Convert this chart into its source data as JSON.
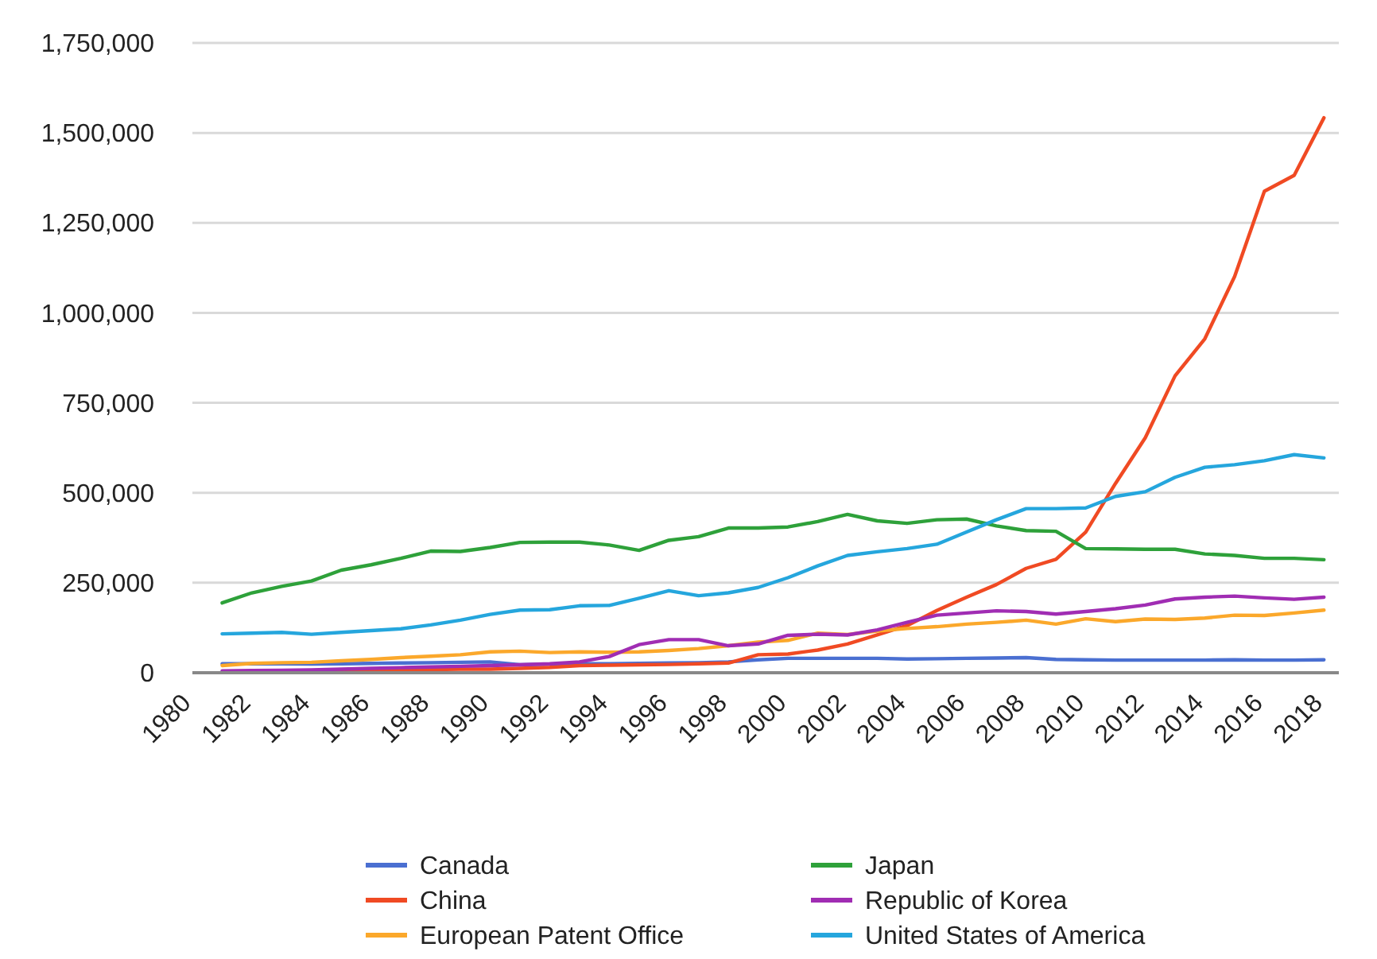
{
  "chart_data": {
    "type": "line",
    "x": [
      1981,
      1982,
      1983,
      1984,
      1985,
      1986,
      1987,
      1988,
      1989,
      1990,
      1991,
      1992,
      1993,
      1994,
      1995,
      1996,
      1997,
      1998,
      1999,
      2000,
      2001,
      2002,
      2003,
      2004,
      2005,
      2006,
      2007,
      2008,
      2009,
      2010,
      2011,
      2012,
      2013,
      2014,
      2015,
      2016,
      2017,
      2018
    ],
    "xlim": [
      1980,
      2018.5
    ],
    "xticks": [
      1980,
      1982,
      1984,
      1986,
      1988,
      1990,
      1992,
      1994,
      1996,
      1998,
      2000,
      2002,
      2004,
      2006,
      2008,
      2010,
      2012,
      2014,
      2016,
      2018
    ],
    "ylim": [
      0,
      1750000
    ],
    "yticks": [
      {
        "value": 0,
        "label": "0"
      },
      {
        "value": 250000,
        "label": "250,000"
      },
      {
        "value": 500000,
        "label": "500,000"
      },
      {
        "value": 750000,
        "label": "750,000"
      },
      {
        "value": 1000000,
        "label": "1,000,000"
      },
      {
        "value": 1250000,
        "label": "1,250,000"
      },
      {
        "value": 1500000,
        "label": "1,500,000"
      },
      {
        "value": 1750000,
        "label": "1,750,000"
      }
    ],
    "grid": "y",
    "legend": "bottom",
    "marker": "none",
    "line_style": "solid",
    "series": [
      {
        "name": "Canada",
        "color": "#4a6fd1",
        "values": [
          25000,
          25000,
          25000,
          24000,
          25000,
          26000,
          27000,
          28000,
          29000,
          30000,
          22000,
          24000,
          25000,
          25000,
          26000,
          27000,
          28000,
          30000,
          36000,
          40000,
          40000,
          40000,
          40000,
          38000,
          39000,
          40000,
          41000,
          42000,
          37000,
          36000,
          35000,
          35000,
          35000,
          35000,
          36000,
          35000,
          35000,
          36000
        ]
      },
      {
        "name": "China",
        "color": "#f04a23",
        "values": [
          null,
          null,
          null,
          5000,
          8000,
          8000,
          8000,
          9000,
          10000,
          10000,
          12000,
          15000,
          20000,
          21000,
          22000,
          23000,
          25000,
          27000,
          50000,
          52000,
          63000,
          80000,
          105000,
          131000,
          173000,
          210000,
          245000,
          290000,
          315000,
          391000,
          526000,
          653000,
          825000,
          928000,
          1101000,
          1338000,
          1382000,
          1542000
        ]
      },
      {
        "name": "European Patent Office",
        "color": "#fba82b",
        "values": [
          20000,
          26000,
          28000,
          29000,
          33000,
          37000,
          42000,
          46000,
          50000,
          58000,
          60000,
          56000,
          58000,
          57000,
          58000,
          62000,
          67000,
          75000,
          85000,
          90000,
          110000,
          106000,
          116000,
          123000,
          128000,
          135000,
          140000,
          146000,
          135000,
          150000,
          142000,
          149000,
          148000,
          152000,
          160000,
          159000,
          166000,
          174000
        ]
      },
      {
        "name": "Japan",
        "color": "#2ea13a",
        "values": [
          194000,
          222000,
          240000,
          255000,
          285000,
          300000,
          318000,
          338000,
          337000,
          348000,
          362000,
          363000,
          363000,
          355000,
          340000,
          368000,
          378000,
          402000,
          402000,
          405000,
          420000,
          440000,
          422000,
          415000,
          425000,
          427000,
          408000,
          395000,
          393000,
          345000,
          344000,
          343000,
          343000,
          330000,
          326000,
          318000,
          318000,
          314000
        ]
      },
      {
        "name": "Republic of Korea",
        "color": "#a02db3",
        "values": [
          5000,
          6000,
          7000,
          8000,
          10000,
          12000,
          14000,
          16000,
          18000,
          20000,
          22000,
          25000,
          30000,
          45000,
          78000,
          92000,
          92000,
          75000,
          80000,
          104000,
          107000,
          105000,
          119000,
          140000,
          160000,
          166000,
          172000,
          170000,
          163000,
          170000,
          178000,
          188000,
          205000,
          210000,
          213000,
          208000,
          204000,
          210000
        ]
      },
      {
        "name": "United States of America",
        "color": "#25a6dd",
        "values": [
          108000,
          110000,
          112000,
          107000,
          112000,
          117000,
          122000,
          133000,
          146000,
          162000,
          174000,
          175000,
          186000,
          187000,
          207000,
          228000,
          214000,
          222000,
          237000,
          264000,
          297000,
          326000,
          336000,
          345000,
          357000,
          391000,
          425000,
          456000,
          456000,
          458000,
          490000,
          503000,
          543000,
          571000,
          578000,
          589000,
          606000,
          597000
        ]
      }
    ]
  }
}
